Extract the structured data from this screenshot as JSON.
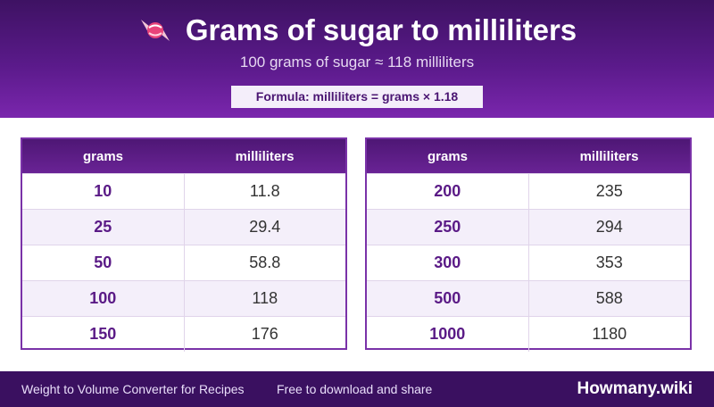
{
  "header": {
    "title": "Grams of sugar to milliliters",
    "subtitle": "100 grams of sugar ≈ 118 milliliters",
    "formula": "Formula: milliliters = grams × 1.18",
    "icon": "candy-icon"
  },
  "tables": [
    {
      "col_grams": "grams",
      "col_ml": "milliliters",
      "rows": [
        {
          "grams": "10",
          "ml": "11.8"
        },
        {
          "grams": "25",
          "ml": "29.4"
        },
        {
          "grams": "50",
          "ml": "58.8"
        },
        {
          "grams": "100",
          "ml": "118"
        },
        {
          "grams": "150",
          "ml": "176"
        }
      ]
    },
    {
      "col_grams": "grams",
      "col_ml": "milliliters",
      "rows": [
        {
          "grams": "200",
          "ml": "235"
        },
        {
          "grams": "250",
          "ml": "294"
        },
        {
          "grams": "300",
          "ml": "353"
        },
        {
          "grams": "500",
          "ml": "588"
        },
        {
          "grams": "1000",
          "ml": "1180"
        }
      ]
    }
  ],
  "footer": {
    "left": "Weight to Volume Converter for Recipes",
    "middle": "Free to download and share",
    "brand": "Howmany.wiki"
  },
  "colors": {
    "header_dark": "#3e1263",
    "header_light": "#7a26ad",
    "accent": "#5a1a86",
    "row_alt": "#f4effa"
  }
}
